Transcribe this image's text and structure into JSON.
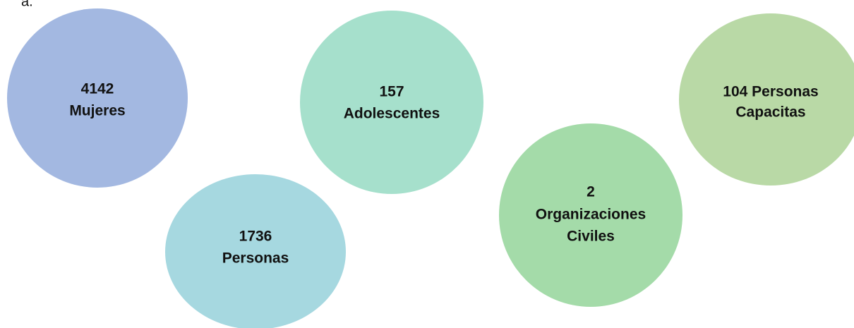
{
  "label": "a.",
  "nodes": [
    {
      "lines": [
        "4142",
        "Mujeres"
      ]
    },
    {
      "lines": [
        "1736",
        "Personas"
      ]
    },
    {
      "lines": [
        "157",
        "Adolescentes"
      ]
    },
    {
      "lines": [
        "2",
        "Organizaciones",
        "Civiles"
      ]
    },
    {
      "lines": [
        "104 Personas",
        "Capacitas"
      ]
    }
  ]
}
